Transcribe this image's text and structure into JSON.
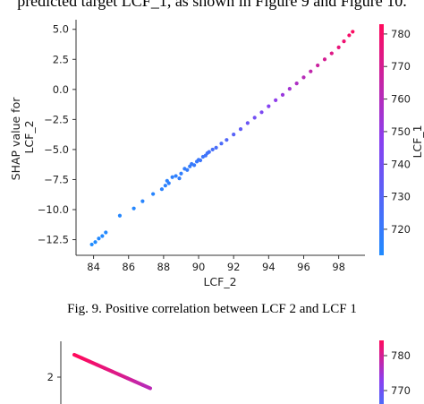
{
  "page": {
    "text_above": "predicted target LCF_1, as shown in Figure 9 and Figure 10.",
    "caption": "Fig. 9.  Positive correlation between LCF 2 and LCF 1"
  },
  "colors": {
    "low": "#1f8bff",
    "mid": "#8a3ff0",
    "high": "#ff0a5c"
  },
  "chart_data": [
    {
      "type": "scatter",
      "title": "",
      "xlabel": "LCF_2",
      "ylabel": "SHAP value for\nLCF_2",
      "xlim": [
        83,
        99.5
      ],
      "ylim": [
        -13.8,
        5.8
      ],
      "xticks": [
        "84",
        "86",
        "88",
        "90",
        "92",
        "94",
        "96",
        "98"
      ],
      "yticks": [
        "5.0",
        "2.5",
        "0.0",
        "−2.5",
        "−5.0",
        "−7.5",
        "−10.0",
        "−12.5"
      ],
      "colorbar": {
        "label": "LCF_1",
        "ticks": [
          "780",
          "770",
          "760",
          "750",
          "740",
          "730",
          "720"
        ],
        "range": [
          712,
          783
        ]
      },
      "points": [
        {
          "x": 83.9,
          "y": -12.9,
          "c": 712
        },
        {
          "x": 84.1,
          "y": -12.7,
          "c": 712
        },
        {
          "x": 84.3,
          "y": -12.4,
          "c": 713
        },
        {
          "x": 84.5,
          "y": -12.2,
          "c": 713
        },
        {
          "x": 84.7,
          "y": -11.9,
          "c": 713
        },
        {
          "x": 85.5,
          "y": -10.5,
          "c": 714
        },
        {
          "x": 86.3,
          "y": -9.9,
          "c": 714
        },
        {
          "x": 86.8,
          "y": -9.3,
          "c": 715
        },
        {
          "x": 87.4,
          "y": -8.7,
          "c": 715
        },
        {
          "x": 87.9,
          "y": -8.3,
          "c": 716
        },
        {
          "x": 88.1,
          "y": -8.0,
          "c": 716
        },
        {
          "x": 88.2,
          "y": -7.6,
          "c": 716
        },
        {
          "x": 88.3,
          "y": -7.8,
          "c": 717
        },
        {
          "x": 88.5,
          "y": -7.3,
          "c": 717
        },
        {
          "x": 88.7,
          "y": -7.2,
          "c": 717
        },
        {
          "x": 88.9,
          "y": -7.4,
          "c": 718
        },
        {
          "x": 89.0,
          "y": -7.0,
          "c": 718
        },
        {
          "x": 89.2,
          "y": -6.6,
          "c": 718
        },
        {
          "x": 89.35,
          "y": -6.7,
          "c": 719
        },
        {
          "x": 89.5,
          "y": -6.4,
          "c": 719
        },
        {
          "x": 89.6,
          "y": -6.2,
          "c": 720
        },
        {
          "x": 89.75,
          "y": -6.3,
          "c": 720
        },
        {
          "x": 89.9,
          "y": -6.0,
          "c": 721
        },
        {
          "x": 90.0,
          "y": -5.85,
          "c": 721
        },
        {
          "x": 90.1,
          "y": -5.9,
          "c": 722
        },
        {
          "x": 90.25,
          "y": -5.6,
          "c": 722
        },
        {
          "x": 90.4,
          "y": -5.5,
          "c": 723
        },
        {
          "x": 90.5,
          "y": -5.3,
          "c": 723
        },
        {
          "x": 90.6,
          "y": -5.2,
          "c": 724
        },
        {
          "x": 90.8,
          "y": -5.0,
          "c": 725
        },
        {
          "x": 91.0,
          "y": -4.85,
          "c": 726
        },
        {
          "x": 91.3,
          "y": -4.5,
          "c": 727
        },
        {
          "x": 91.6,
          "y": -4.2,
          "c": 729
        },
        {
          "x": 92.0,
          "y": -3.75,
          "c": 731
        },
        {
          "x": 92.4,
          "y": -3.3,
          "c": 734
        },
        {
          "x": 92.8,
          "y": -2.8,
          "c": 737
        },
        {
          "x": 93.2,
          "y": -2.35,
          "c": 740
        },
        {
          "x": 93.6,
          "y": -1.9,
          "c": 743
        },
        {
          "x": 94.0,
          "y": -1.4,
          "c": 746
        },
        {
          "x": 94.4,
          "y": -0.9,
          "c": 749
        },
        {
          "x": 94.8,
          "y": -0.45,
          "c": 752
        },
        {
          "x": 95.2,
          "y": 0.05,
          "c": 755
        },
        {
          "x": 95.6,
          "y": 0.5,
          "c": 758
        },
        {
          "x": 96.0,
          "y": 1.0,
          "c": 761
        },
        {
          "x": 96.4,
          "y": 1.5,
          "c": 764
        },
        {
          "x": 96.8,
          "y": 2.0,
          "c": 767
        },
        {
          "x": 97.2,
          "y": 2.5,
          "c": 770
        },
        {
          "x": 97.6,
          "y": 3.0,
          "c": 773
        },
        {
          "x": 98.0,
          "y": 3.5,
          "c": 776
        },
        {
          "x": 98.3,
          "y": 4.0,
          "c": 778
        },
        {
          "x": 98.6,
          "y": 4.5,
          "c": 780
        },
        {
          "x": 98.8,
          "y": 4.8,
          "c": 782
        }
      ]
    },
    {
      "type": "scatter",
      "title": "",
      "xlabel": "",
      "ylabel": "",
      "yticks": [
        "2"
      ],
      "colorbar": {
        "label": "",
        "ticks": [
          "780",
          "770"
        ],
        "range": [
          712,
          783
        ]
      },
      "points": [
        {
          "x": 0.0,
          "y": 3.0,
          "c": 783
        },
        {
          "x": 0.1,
          "y": 2.85,
          "c": 781
        },
        {
          "x": 0.2,
          "y": 2.7,
          "c": 779
        },
        {
          "x": 0.3,
          "y": 2.55,
          "c": 777
        },
        {
          "x": 0.4,
          "y": 2.4,
          "c": 775
        },
        {
          "x": 0.5,
          "y": 2.25,
          "c": 773
        },
        {
          "x": 0.6,
          "y": 2.1,
          "c": 771
        },
        {
          "x": 0.7,
          "y": 1.95,
          "c": 768
        },
        {
          "x": 0.8,
          "y": 1.8,
          "c": 765
        },
        {
          "x": 0.9,
          "y": 1.65,
          "c": 762
        },
        {
          "x": 1.0,
          "y": 1.5,
          "c": 759
        }
      ]
    }
  ]
}
